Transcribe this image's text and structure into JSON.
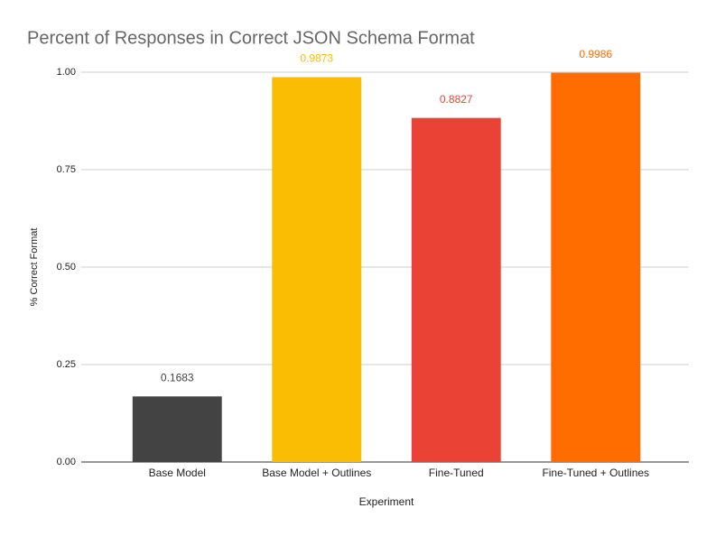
{
  "chart_data": {
    "type": "bar",
    "title": "Percent of Responses in Correct JSON Schema Format",
    "x_label": "Experiment",
    "y_label": "% Correct Format",
    "categories": [
      "Base Model",
      "Base Model + Outlines",
      "Fine-Tuned",
      "Fine-Tuned + Outlines"
    ],
    "values": [
      0.1683,
      0.9873,
      0.8827,
      0.9986
    ],
    "colors": [
      "#434343",
      "#fbbc04",
      "#ea4335",
      "#ff6d01"
    ],
    "ylim": [
      0,
      1
    ],
    "yticks": [
      {
        "value": 0,
        "label": "0.00"
      },
      {
        "value": 0.25,
        "label": "0.25"
      },
      {
        "value": 0.5,
        "label": "0.50"
      },
      {
        "value": 0.75,
        "label": "0.75"
      },
      {
        "value": 1,
        "label": "1.00"
      }
    ],
    "grid": true
  }
}
